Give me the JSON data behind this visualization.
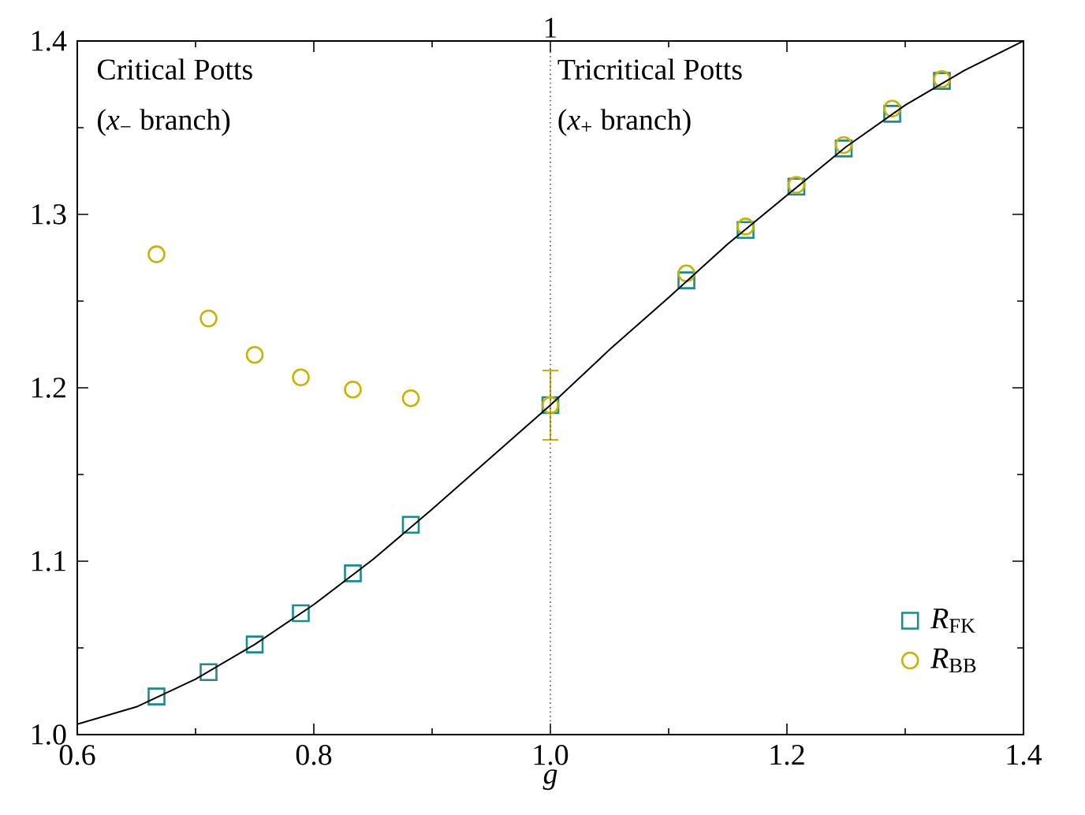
{
  "chart_data": {
    "type": "scatter",
    "xlabel": "g",
    "xlim": [
      0.6,
      1.4
    ],
    "ylim": [
      1.0,
      1.4
    ],
    "xticks": [
      0.6,
      0.8,
      {
        "value": 1.0,
        "label": "1.0"
      },
      1.2,
      1.4
    ],
    "yticks": [
      {
        "value": 1.0,
        "label": "1.0"
      },
      1.1,
      1.2,
      1.3,
      1.4
    ],
    "ref_lines": [
      {
        "axis": "x",
        "value": 1.0,
        "color": "#555555",
        "line_style": "dotted",
        "label": "1"
      }
    ],
    "annotations": [
      "Critical Potts",
      "(*x*$_{−}$ branch)",
      "Tricritical Potts",
      "(*x*$_{+}$ branch)"
    ],
    "legend": "bottom right",
    "grid": false,
    "series": [
      {
        "name": "*R*$_{FK}$",
        "color": "#1a8c8c",
        "marker": "square",
        "x": [
          0.667,
          0.711,
          0.75,
          0.789,
          0.833,
          0.882,
          1.0,
          1.115,
          1.165,
          1.208,
          1.248,
          1.289,
          1.331
        ],
        "values": [
          1.022,
          1.036,
          1.052,
          1.07,
          1.093,
          1.121,
          1.19,
          1.262,
          1.291,
          1.316,
          1.338,
          1.358,
          1.377
        ]
      },
      {
        "name": "*R*$_{BB}$",
        "color": "#c8b400",
        "marker": "circle",
        "x": [
          0.667,
          0.711,
          0.75,
          0.789,
          0.833,
          0.882,
          1.0,
          1.115,
          1.165,
          1.208,
          1.248,
          1.289,
          1.331
        ],
        "values": [
          1.277,
          1.24,
          1.219,
          1.206,
          1.199,
          1.194,
          1.19,
          1.266,
          1.293,
          1.317,
          1.34,
          1.361,
          1.378
        ],
        "errors": [
          null,
          null,
          null,
          null,
          null,
          null,
          0.02,
          null,
          null,
          null,
          null,
          null,
          null
        ]
      },
      {
        "type": "line",
        "color": "#000000",
        "marker": "none",
        "x": [
          0.6,
          0.65,
          0.7,
          0.75,
          0.8,
          0.85,
          0.9,
          0.95,
          1.0,
          1.05,
          1.1,
          1.15,
          1.2,
          1.25,
          1.3,
          1.35,
          1.4
        ],
        "values": [
          1.006,
          1.016,
          1.032,
          1.052,
          1.075,
          1.101,
          1.13,
          1.16,
          1.19,
          1.222,
          1.252,
          1.283,
          1.311,
          1.339,
          1.363,
          1.383,
          1.4
        ]
      }
    ]
  }
}
